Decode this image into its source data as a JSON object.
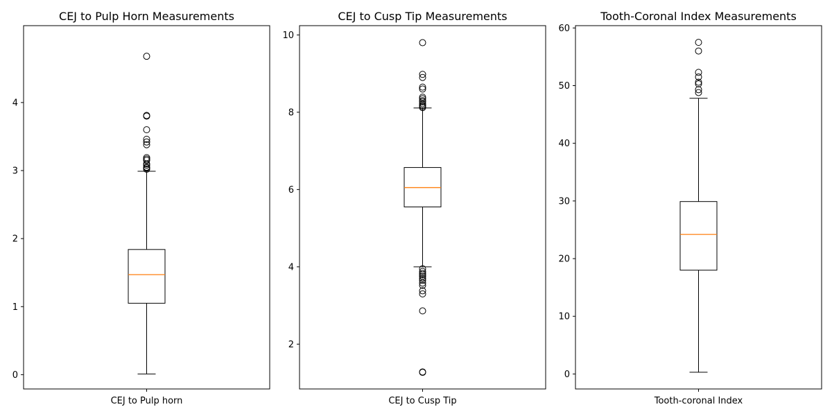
{
  "chart_data": [
    {
      "type": "box",
      "title": "CEJ to Pulp Horn Measurements",
      "category": "CEJ to Pulp horn",
      "ylim": [
        -0.21,
        5.13
      ],
      "yticks": [
        0,
        1,
        2,
        3,
        4
      ],
      "whisker_low": 0.01,
      "q1": 1.05,
      "median": 1.47,
      "q3": 1.84,
      "whisker_high": 2.99,
      "outliers": [
        3.02,
        3.04,
        3.05,
        3.08,
        3.1,
        3.15,
        3.17,
        3.19,
        3.38,
        3.42,
        3.46,
        3.6,
        3.8,
        3.81,
        4.68
      ]
    },
    {
      "type": "box",
      "title": "CEJ to Cusp Tip Measurements",
      "category": "CEJ to Cusp Tip",
      "ylim": [
        0.84,
        10.24
      ],
      "yticks": [
        2,
        4,
        6,
        8,
        10
      ],
      "whisker_low": 4.0,
      "q1": 5.55,
      "median": 6.05,
      "q3": 6.57,
      "whisker_high": 8.11,
      "outliers": [
        1.27,
        1.28,
        2.86,
        3.3,
        3.38,
        3.52,
        3.58,
        3.65,
        3.7,
        3.75,
        3.79,
        3.83,
        3.88,
        3.95,
        8.12,
        8.15,
        8.18,
        8.22,
        8.27,
        8.3,
        8.35,
        8.39,
        8.6,
        8.65,
        8.9,
        8.98,
        9.8
      ]
    },
    {
      "type": "box",
      "title": "Tooth-Coronal Index Measurements",
      "category": "Tooth-coronal Index",
      "ylim": [
        -2.6,
        60.4
      ],
      "yticks": [
        0,
        10,
        20,
        30,
        40,
        50,
        60
      ],
      "whisker_low": 0.3,
      "q1": 18.0,
      "median": 24.2,
      "q3": 29.9,
      "whisker_high": 47.8,
      "outliers": [
        48.8,
        49.3,
        50.3,
        50.6,
        51.5,
        52.3,
        56.0,
        57.5
      ]
    }
  ],
  "colors": {
    "median": "#ff7f0e",
    "box": "#000000",
    "outlier_edge": "#000000"
  }
}
